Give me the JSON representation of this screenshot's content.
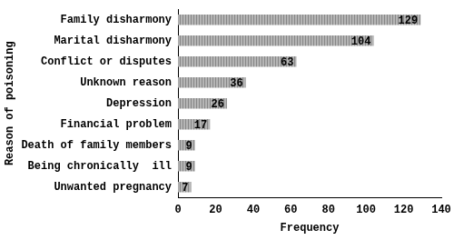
{
  "chart_data": {
    "type": "bar",
    "orientation": "horizontal",
    "y_label": "Reason of poisoning",
    "x_label": "Frequency",
    "categories": [
      "Family disharmony",
      "Marital disharmony",
      "Conflict or disputes",
      "Unknown reason",
      "Depression",
      "Financial problem",
      "Death of family members",
      "Being chronically  ill",
      "Unwanted pregnancy"
    ],
    "values": [
      129,
      104,
      63,
      36,
      26,
      17,
      9,
      9,
      7
    ],
    "color": "#b5b5b5",
    "xlim": [
      0,
      140
    ],
    "xticks": [
      0,
      20,
      40,
      60,
      80,
      100,
      120,
      140
    ],
    "grid": false,
    "data_labels": true
  }
}
